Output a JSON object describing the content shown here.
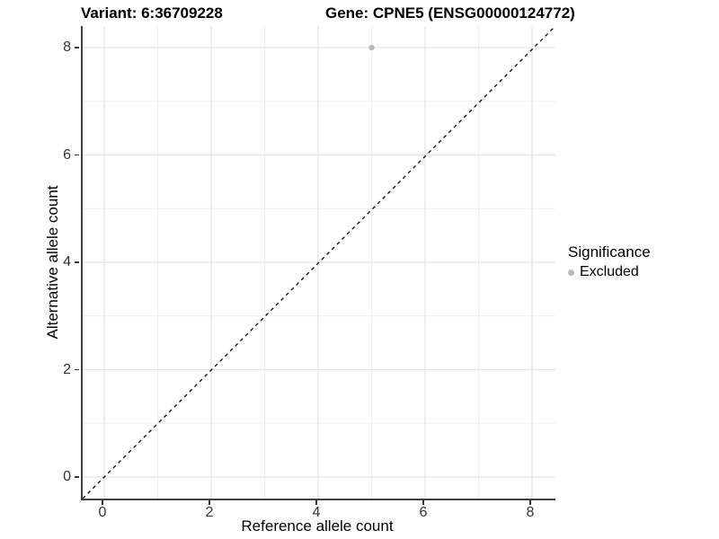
{
  "titles": {
    "variant": "Variant: 6:36709228",
    "gene": "Gene: CPNE5 (ENSG00000124772)"
  },
  "legend": {
    "title": "Significance",
    "items": [
      {
        "label": "Excluded",
        "color": "#b9b9b9"
      }
    ]
  },
  "colors": {
    "point": "#b9b9b9",
    "grid_major": "#e3e3e3",
    "grid_minor": "#efefef",
    "axis_line": "#404040",
    "tick": "#333333",
    "text": "#000000",
    "reference_line": "#000000"
  },
  "chart_data": {
    "type": "scatter",
    "title": "Variant: 6:36709228 | Gene: CPNE5 (ENSG00000124772)",
    "xlabel": "Reference allele count",
    "ylabel": "Alternative allele count",
    "xlim": [
      -0.4,
      8.44
    ],
    "ylim": [
      -0.4,
      8.44
    ],
    "x_ticks": [
      0,
      2,
      4,
      6,
      8
    ],
    "y_ticks": [
      0,
      2,
      4,
      6,
      8
    ],
    "x_minor_ticks": [
      1,
      3,
      5,
      7
    ],
    "y_minor_ticks": [
      1,
      3,
      5,
      7
    ],
    "grid": true,
    "legend_position": "right",
    "series": [
      {
        "name": "Excluded",
        "color": "#b9b9b9",
        "points": [
          {
            "x": 5,
            "y": 8
          }
        ]
      }
    ],
    "reference_line": {
      "type": "identity",
      "equation": "y = x",
      "style": "dashed",
      "color": "#000000"
    }
  }
}
